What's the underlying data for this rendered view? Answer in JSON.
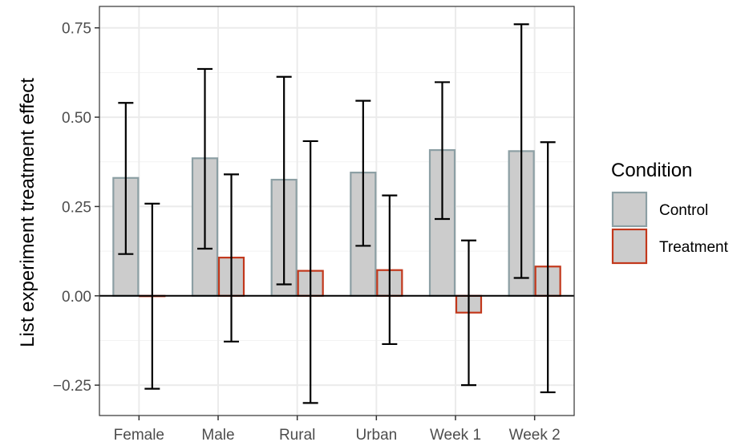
{
  "chart_data": {
    "type": "bar",
    "title": "",
    "xlabel": "",
    "ylabel": "List experiment treatment effect",
    "categories": [
      "Female",
      "Male",
      "Rural",
      "Urban",
      "Week 1",
      "Week 2"
    ],
    "ylim": [
      -0.335,
      0.81
    ],
    "yticks": [
      -0.25,
      0.0,
      0.25,
      0.5,
      0.75
    ],
    "ytick_labels": [
      "−0.25",
      "0.00",
      "0.25",
      "0.50",
      "0.75"
    ],
    "grid": true,
    "zero_line": true,
    "legend": {
      "title": "Condition",
      "position": "right"
    },
    "series": [
      {
        "name": "Control",
        "fill": "#cccccc",
        "stroke": "#8c9fa4",
        "values": [
          0.33,
          0.385,
          0.325,
          0.345,
          0.408,
          0.405
        ],
        "ci_low": [
          0.117,
          0.132,
          0.032,
          0.14,
          0.215,
          0.05
        ],
        "ci_high": [
          0.54,
          0.635,
          0.613,
          0.546,
          0.598,
          0.76
        ]
      },
      {
        "name": "Treatment",
        "fill": "#cccccc",
        "stroke": "#c2381c",
        "values": [
          0.0,
          0.107,
          0.07,
          0.072,
          -0.047,
          0.082
        ],
        "ci_low": [
          -0.26,
          -0.128,
          -0.3,
          -0.135,
          -0.25,
          -0.27
        ],
        "ci_high": [
          0.258,
          0.34,
          0.433,
          0.281,
          0.155,
          0.43
        ]
      }
    ]
  }
}
